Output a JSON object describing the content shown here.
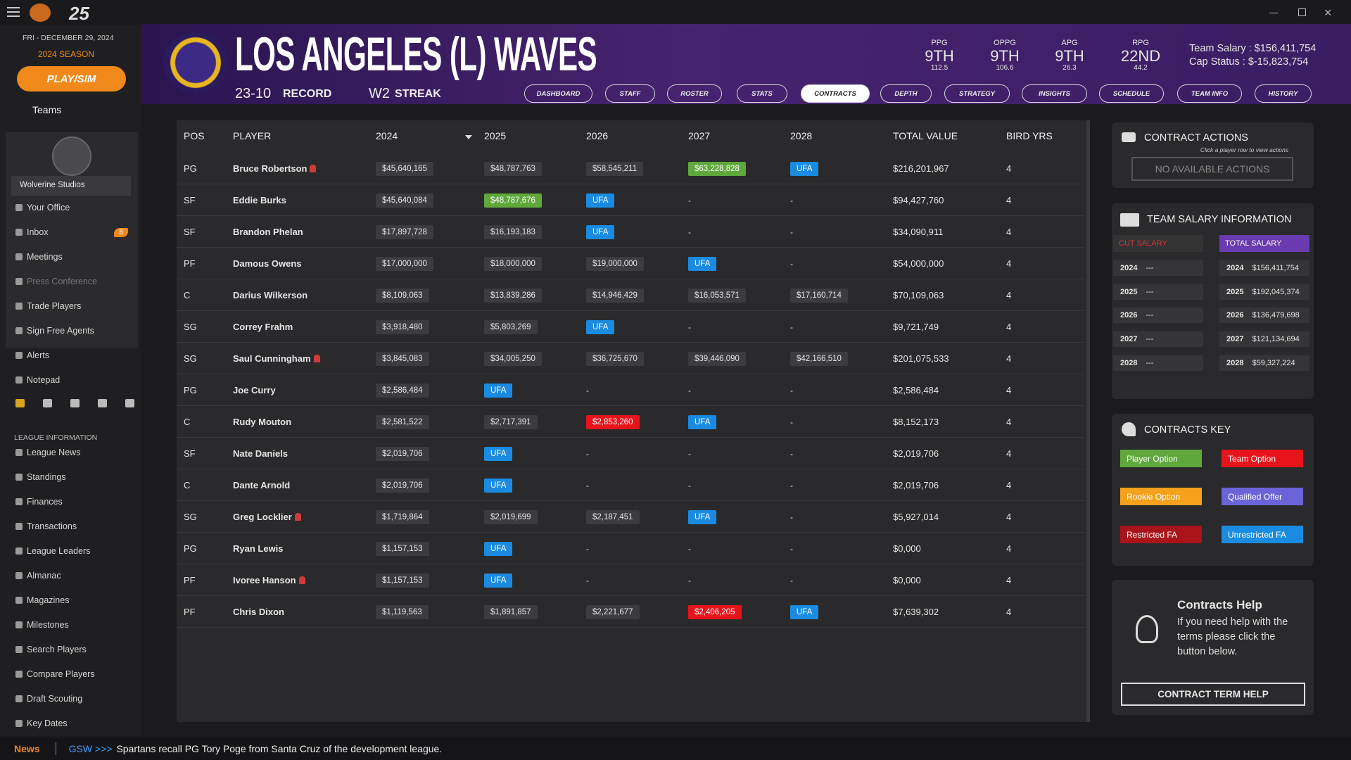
{
  "app": {
    "logo": "25"
  },
  "sidebar": {
    "date": "FRI - DECEMBER 29, 2024",
    "season": "2024 SEASON",
    "play_button": "PLAY/SIM",
    "teams": "Teams",
    "studio": "Wolverine Studios",
    "menu": [
      {
        "label": "Your Office"
      },
      {
        "label": "Inbox",
        "badge": "8"
      },
      {
        "label": "Meetings"
      },
      {
        "label": "Press Conference",
        "disabled": true
      },
      {
        "label": "Trade Players"
      },
      {
        "label": "Sign Free Agents"
      },
      {
        "label": "Alerts"
      },
      {
        "label": "Notepad"
      }
    ],
    "league_heading": "LEAGUE INFORMATION",
    "league_menu": [
      "League News",
      "Standings",
      "Finances",
      "Transactions",
      "League Leaders",
      "Almanac",
      "Magazines",
      "Milestones",
      "Search Players",
      "Compare Players",
      "Draft Scouting",
      "Key Dates"
    ]
  },
  "team": {
    "name": "LOS ANGELES (L) WAVES",
    "record": "23-10",
    "record_label": "RECORD",
    "streak": "W2",
    "streak_label": "STREAK",
    "stats": [
      {
        "label": "PPG",
        "rank": "9TH",
        "value": "112.5"
      },
      {
        "label": "OPPG",
        "rank": "9TH",
        "value": "106.6"
      },
      {
        "label": "APG",
        "rank": "9TH",
        "value": "26.3"
      },
      {
        "label": "RPG",
        "rank": "22ND",
        "value": "44.2"
      }
    ],
    "salary": "Team Salary : $156,411,754",
    "cap": "Cap Status : $-15,823,754"
  },
  "tabs": [
    {
      "label": "DASHBOARD"
    },
    {
      "label": "STAFF"
    },
    {
      "label": "ROSTER"
    },
    {
      "label": "STATS"
    },
    {
      "label": "CONTRACTS",
      "active": true
    },
    {
      "label": "DEPTH"
    },
    {
      "label": "STRATEGY"
    },
    {
      "label": "INSIGHTS"
    },
    {
      "label": "SCHEDULE"
    },
    {
      "label": "TEAM INFO"
    },
    {
      "label": "HISTORY"
    }
  ],
  "table": {
    "headers": [
      "POS",
      "PLAYER",
      "2024",
      "2025",
      "2026",
      "2027",
      "2028",
      "TOTAL VALUE",
      "BIRD YRS"
    ],
    "rows": [
      {
        "pos": "PG",
        "player": "Bruce Robertson",
        "injured": true,
        "years": [
          "$45,640,165",
          "$48,787,763",
          "$58,545,211",
          {
            "text": "$63,228,828",
            "option": "player"
          },
          "UFA"
        ],
        "total": "$216,201,967",
        "bird": "4"
      },
      {
        "pos": "SF",
        "player": "Eddie Burks",
        "years": [
          "$45,640,084",
          {
            "text": "$48,787,676",
            "option": "player"
          },
          "UFA",
          "-",
          "-"
        ],
        "total": "$94,427,760",
        "bird": "4"
      },
      {
        "pos": "SF",
        "player": "Brandon Phelan",
        "years": [
          "$17,897,728",
          "$16,193,183",
          "UFA",
          "-",
          "-"
        ],
        "total": "$34,090,911",
        "bird": "4"
      },
      {
        "pos": "PF",
        "player": "Damous Owens",
        "years": [
          "$17,000,000",
          "$18,000,000",
          "$19,000,000",
          "UFA",
          "-"
        ],
        "total": "$54,000,000",
        "bird": "4"
      },
      {
        "pos": "C",
        "player": "Darius Wilkerson",
        "years": [
          "$8,109,063",
          "$13,839,286",
          "$14,946,429",
          "$16,053,571",
          "$17,160,714"
        ],
        "total": "$70,109,063",
        "bird": "4"
      },
      {
        "pos": "SG",
        "player": "Correy Frahm",
        "years": [
          "$3,918,480",
          "$5,803,269",
          "UFA",
          "-",
          "-"
        ],
        "total": "$9,721,749",
        "bird": "4"
      },
      {
        "pos": "SG",
        "player": "Saul Cunningham",
        "injured": true,
        "years": [
          "$3,845,083",
          "$34,005,250",
          "$36,725,670",
          "$39,446,090",
          "$42,166,510"
        ],
        "total": "$201,075,533",
        "bird": "4"
      },
      {
        "pos": "PG",
        "player": "Joe Curry",
        "years": [
          "$2,586,484",
          "UFA",
          "-",
          "-",
          "-"
        ],
        "total": "$2,586,484",
        "bird": "4"
      },
      {
        "pos": "C",
        "player": "Rudy Mouton",
        "years": [
          "$2,581,522",
          "$2,717,391",
          {
            "text": "$2,853,260",
            "option": "team"
          },
          "UFA",
          "-"
        ],
        "total": "$8,152,173",
        "bird": "4"
      },
      {
        "pos": "SF",
        "player": "Nate Daniels",
        "years": [
          "$2,019,706",
          "UFA",
          "-",
          "-",
          "-"
        ],
        "total": "$2,019,706",
        "bird": "4"
      },
      {
        "pos": "C",
        "player": "Dante Arnold",
        "years": [
          "$2,019,706",
          "UFA",
          "-",
          "-",
          "-"
        ],
        "total": "$2,019,706",
        "bird": "4"
      },
      {
        "pos": "SG",
        "player": "Greg Locklier",
        "injured": true,
        "years": [
          "$1,719,864",
          "$2,019,699",
          "$2,187,451",
          "UFA",
          "-"
        ],
        "total": "$5,927,014",
        "bird": "4"
      },
      {
        "pos": "PG",
        "player": "Ryan Lewis",
        "years": [
          "$1,157,153",
          "UFA",
          "-",
          "-",
          "-"
        ],
        "total": "$0,000",
        "bird": "4"
      },
      {
        "pos": "PF",
        "player": "Ivoree Hanson",
        "injured": true,
        "years": [
          "$1,157,153",
          "UFA",
          "-",
          "-",
          "-"
        ],
        "total": "$0,000",
        "bird": "4"
      },
      {
        "pos": "PF",
        "player": "Chris Dixon",
        "years": [
          "$1,119,563",
          "$1,891,857",
          "$2,221,677",
          {
            "text": "$2,406,205",
            "option": "team"
          },
          "UFA"
        ],
        "total": "$7,639,302",
        "bird": "4"
      }
    ]
  },
  "contract_actions": {
    "title": "CONTRACT ACTIONS",
    "hint": "Click a player row to view actions",
    "button": "NO AVAILABLE ACTIONS"
  },
  "salary_info": {
    "title": "TEAM SALARY INFORMATION",
    "cut_label": "CUT SALARY",
    "total_label": "TOTAL SALARY",
    "cut": [
      {
        "year": "2024",
        "value": "---"
      },
      {
        "year": "2025",
        "value": "---"
      },
      {
        "year": "2026",
        "value": "---"
      },
      {
        "year": "2027",
        "value": "---"
      },
      {
        "year": "2028",
        "value": "---"
      }
    ],
    "total": [
      {
        "year": "2024",
        "value": "$156,411,754"
      },
      {
        "year": "2025",
        "value": "$192,045,374"
      },
      {
        "year": "2026",
        "value": "$136,479,698"
      },
      {
        "year": "2027",
        "value": "$121,134,694"
      },
      {
        "year": "2028",
        "value": "$59,327,224"
      }
    ]
  },
  "contracts_key": {
    "title": "CONTRACTS KEY",
    "items": [
      {
        "label": "Player Option",
        "color": "#5fa83c"
      },
      {
        "label": "Team Option",
        "color": "#e8141c"
      },
      {
        "label": "Rookie Option",
        "color": "#f5a11c"
      },
      {
        "label": "Qualified Offer",
        "color": "#6a64d8"
      },
      {
        "label": "Restricted FA",
        "color": "#a8141a"
      },
      {
        "label": "Unrestricted FA",
        "color": "#1a8be0"
      }
    ]
  },
  "help": {
    "title": "Contracts Help",
    "text": "If you need help with the terms please click the button below.",
    "button": "CONTRACT TERM HELP"
  },
  "news": {
    "label": "News",
    "source": "GSW >>>",
    "text": "Spartans recall PG Tory Poge from Santa Cruz of the development league."
  }
}
